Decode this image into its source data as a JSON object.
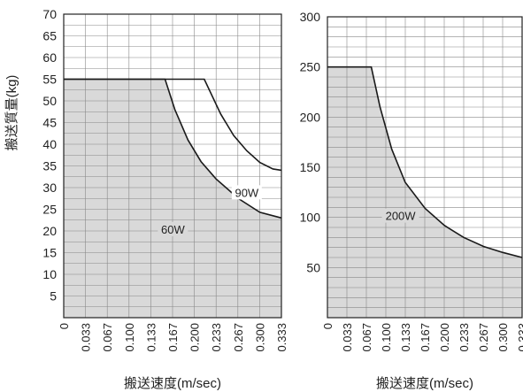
{
  "chart_data": [
    {
      "type": "area",
      "xlabel": "搬送速度(m/sec)",
      "ylabel": "搬送質量(kg)",
      "x_ticks": [
        "0",
        "0.033",
        "0.067",
        "0.100",
        "0.133",
        "0.167",
        "0.200",
        "0.233",
        "0.267",
        "0.300",
        "0.333"
      ],
      "xlim": [
        0,
        0.333
      ],
      "ylim": [
        0,
        70
      ],
      "y_ticks": [
        5,
        10,
        15,
        20,
        25,
        30,
        35,
        40,
        45,
        50,
        55,
        60,
        65,
        70
      ],
      "y_minor_step": 2.5,
      "grid": true,
      "fill_color": "#d9d9d9",
      "line_color": "#1a1a1a",
      "series": [
        {
          "name": "60W",
          "filled": true,
          "label_at": [
            0.167,
            20
          ],
          "points": [
            [
              0,
              55
            ],
            [
              0.155,
              55
            ],
            [
              0.17,
              48
            ],
            [
              0.19,
              41
            ],
            [
              0.21,
              36
            ],
            [
              0.233,
              32
            ],
            [
              0.267,
              27.5
            ],
            [
              0.3,
              24.3
            ],
            [
              0.333,
              23
            ]
          ]
        },
        {
          "name": "90W",
          "filled": false,
          "label_at": [
            0.28,
            28.5
          ],
          "points": [
            [
              0,
              55
            ],
            [
              0.215,
              55
            ],
            [
              0.24,
              47
            ],
            [
              0.26,
              42
            ],
            [
              0.28,
              38.5
            ],
            [
              0.3,
              35.8
            ],
            [
              0.32,
              34.3
            ],
            [
              0.333,
              34
            ]
          ]
        }
      ]
    },
    {
      "type": "area",
      "xlabel": "搬送速度(m/sec)",
      "ylabel": "",
      "x_ticks": [
        "0",
        "0.033",
        "0.067",
        "0.100",
        "0.133",
        "0.167",
        "0.200",
        "0.233",
        "0.267",
        "0.300",
        "0.333"
      ],
      "xlim": [
        0,
        0.333
      ],
      "ylim": [
        0,
        300
      ],
      "y_ticks": [
        50,
        100,
        150,
        200,
        250,
        300
      ],
      "y_minor_step": 10,
      "grid": true,
      "fill_color": "#d9d9d9",
      "line_color": "#1a1a1a",
      "series": [
        {
          "name": "200W",
          "filled": true,
          "label_at": [
            0.125,
            100
          ],
          "points": [
            [
              0,
              250
            ],
            [
              0.075,
              250
            ],
            [
              0.09,
              210
            ],
            [
              0.11,
              168
            ],
            [
              0.133,
              135
            ],
            [
              0.167,
              109
            ],
            [
              0.2,
              92
            ],
            [
              0.233,
              80
            ],
            [
              0.267,
              71
            ],
            [
              0.3,
              65
            ],
            [
              0.333,
              60
            ]
          ]
        }
      ]
    }
  ]
}
